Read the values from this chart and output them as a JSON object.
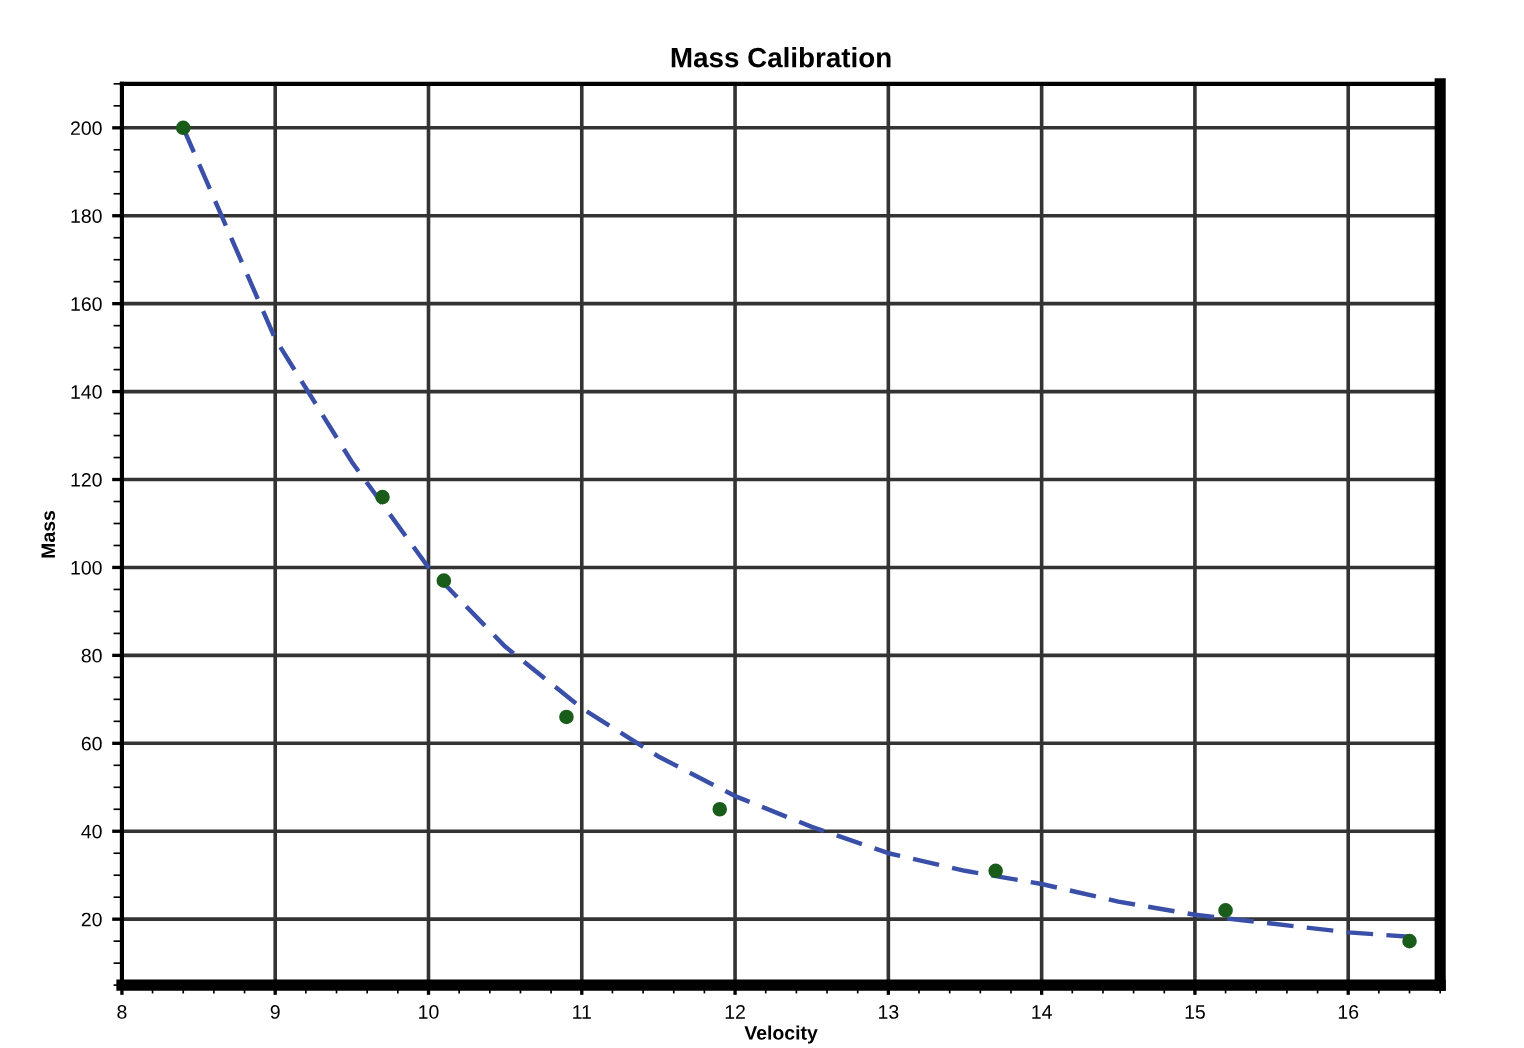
{
  "chart_data": {
    "type": "scatter",
    "title": "Mass Calibration",
    "xlabel": "Velocity",
    "ylabel": "Mass",
    "xlim": [
      8,
      16.6
    ],
    "ylim": [
      5,
      210
    ],
    "xticks": [
      8,
      9,
      10,
      11,
      12,
      13,
      14,
      15,
      16
    ],
    "yticks": [
      20,
      40,
      60,
      80,
      100,
      120,
      140,
      160,
      180,
      200
    ],
    "grid": true,
    "series": [
      {
        "color": "#1a5c1a",
        "marker": "circle",
        "x": [
          8.4,
          9.7,
          10.1,
          10.9,
          11.9,
          13.7,
          15.2,
          16.4
        ],
        "values": [
          200,
          116,
          97,
          66,
          45,
          31,
          22,
          15
        ]
      },
      {
        "type": "line",
        "color": "#3a4fa8",
        "line_style": "dashed",
        "marker": "none",
        "x": [
          8.4,
          9,
          9.5,
          10,
          10.5,
          11,
          11.5,
          12,
          12.5,
          13,
          13.5,
          14,
          14.5,
          15,
          15.5,
          16,
          16.4
        ],
        "values": [
          200,
          152,
          124,
          100,
          82,
          68,
          57,
          48,
          41,
          35,
          31,
          28,
          24,
          21,
          19,
          17,
          16
        ]
      }
    ]
  }
}
